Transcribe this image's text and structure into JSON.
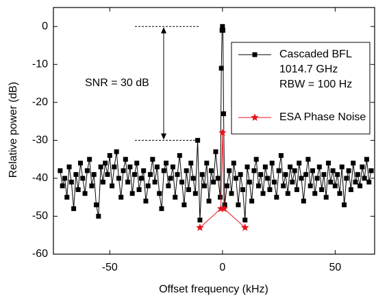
{
  "chart_data": {
    "type": "line",
    "x_label": "Offset frequency (kHz)",
    "y_label": "Relative power (dB)",
    "xlim": [
      -75,
      67.5
    ],
    "ylim": [
      -60,
      5
    ],
    "xticks": [
      -50,
      0,
      50
    ],
    "yticks": [
      0,
      -10,
      -20,
      -30,
      -40,
      -50,
      -60
    ],
    "legend": "upper right",
    "legend_notes": [
      "1014.7 GHz",
      "RBW = 100 Hz"
    ],
    "annotation": "SNR = 30 dB",
    "reference_levels": [
      0,
      -30
    ],
    "series": [
      {
        "name": "Cascaded BFL",
        "color": "#000000",
        "marker": "square",
        "x": [
          -72,
          -71,
          -70,
          -69,
          -68,
          -67,
          -66,
          -65,
          -64,
          -63,
          -62,
          -61,
          -60,
          -59,
          -58,
          -57,
          -56,
          -55,
          -54,
          -53,
          -52,
          -51,
          -50,
          -49,
          -48,
          -47,
          -46,
          -45,
          -44,
          -43,
          -42,
          -41,
          -40,
          -39,
          -38,
          -37,
          -36,
          -35,
          -34,
          -33,
          -32,
          -31,
          -30,
          -29,
          -28,
          -27,
          -26,
          -25,
          -24,
          -23,
          -22,
          -21,
          -20,
          -19,
          -18,
          -17,
          -16,
          -15,
          -14,
          -13,
          -12,
          -11,
          -10,
          -9,
          -8,
          -7,
          -6,
          -5,
          -4,
          -3,
          -2,
          -1,
          -0.5,
          -0.2,
          0,
          0.2,
          0.5,
          1,
          2,
          3,
          4,
          5,
          6,
          7,
          8,
          9,
          10,
          11,
          12,
          13,
          14,
          15,
          16,
          17,
          18,
          19,
          20,
          21,
          22,
          23,
          24,
          25,
          26,
          27,
          28,
          29,
          30,
          31,
          32,
          33,
          34,
          35,
          36,
          37,
          38,
          39,
          40,
          41,
          42,
          43,
          44,
          45,
          46,
          47,
          48,
          49,
          50,
          51,
          52,
          53,
          54,
          55,
          56,
          57,
          58,
          59,
          60,
          61,
          62,
          63,
          64,
          65,
          66
        ],
        "values": [
          -38,
          -42,
          -40,
          -45,
          -37,
          -41,
          -48,
          -39,
          -43,
          -36,
          -40,
          -44,
          -38,
          -35,
          -42,
          -39,
          -47,
          -50,
          -37,
          -41,
          -36,
          -39,
          -34,
          -42,
          -37,
          -33,
          -40,
          -45,
          -38,
          -35,
          -41,
          -37,
          -44,
          -39,
          -36,
          -43,
          -40,
          -38,
          -46,
          -42,
          -39,
          -35,
          -41,
          -37,
          -44,
          -48,
          -38,
          -36,
          -42,
          -40,
          -37,
          -45,
          -39,
          -34,
          -41,
          -47,
          -38,
          -43,
          -36,
          -40,
          -44,
          -30,
          -51,
          -39,
          -42,
          -36,
          -46,
          -38,
          -41,
          -33,
          -40,
          -45,
          -11,
          -1,
          0,
          -1,
          -23,
          -47,
          -42,
          -38,
          -44,
          -36,
          -40,
          -47,
          -39,
          -43,
          -51,
          -37,
          -41,
          -46,
          -38,
          -35,
          -42,
          -39,
          -44,
          -37,
          -40,
          -43,
          -36,
          -41,
          -45,
          -38,
          -34,
          -42,
          -39,
          -44,
          -37,
          -41,
          -38,
          -43,
          -36,
          -40,
          -46,
          -39,
          -35,
          -42,
          -38,
          -44,
          -40,
          -37,
          -43,
          -39,
          -45,
          -36,
          -41,
          -38,
          -42,
          -39,
          -44,
          -37,
          -47,
          -40,
          -38,
          -43,
          -36,
          -41,
          -39,
          -42,
          -37,
          -40,
          -35,
          -41,
          -38
        ]
      },
      {
        "name": "ESA Phase Noise",
        "color": "#e8141c",
        "marker": "star",
        "x": [
          -10,
          -0.7,
          0,
          0.7,
          10
        ],
        "values": [
          -53,
          -48,
          -28,
          -48,
          -53
        ]
      }
    ]
  }
}
